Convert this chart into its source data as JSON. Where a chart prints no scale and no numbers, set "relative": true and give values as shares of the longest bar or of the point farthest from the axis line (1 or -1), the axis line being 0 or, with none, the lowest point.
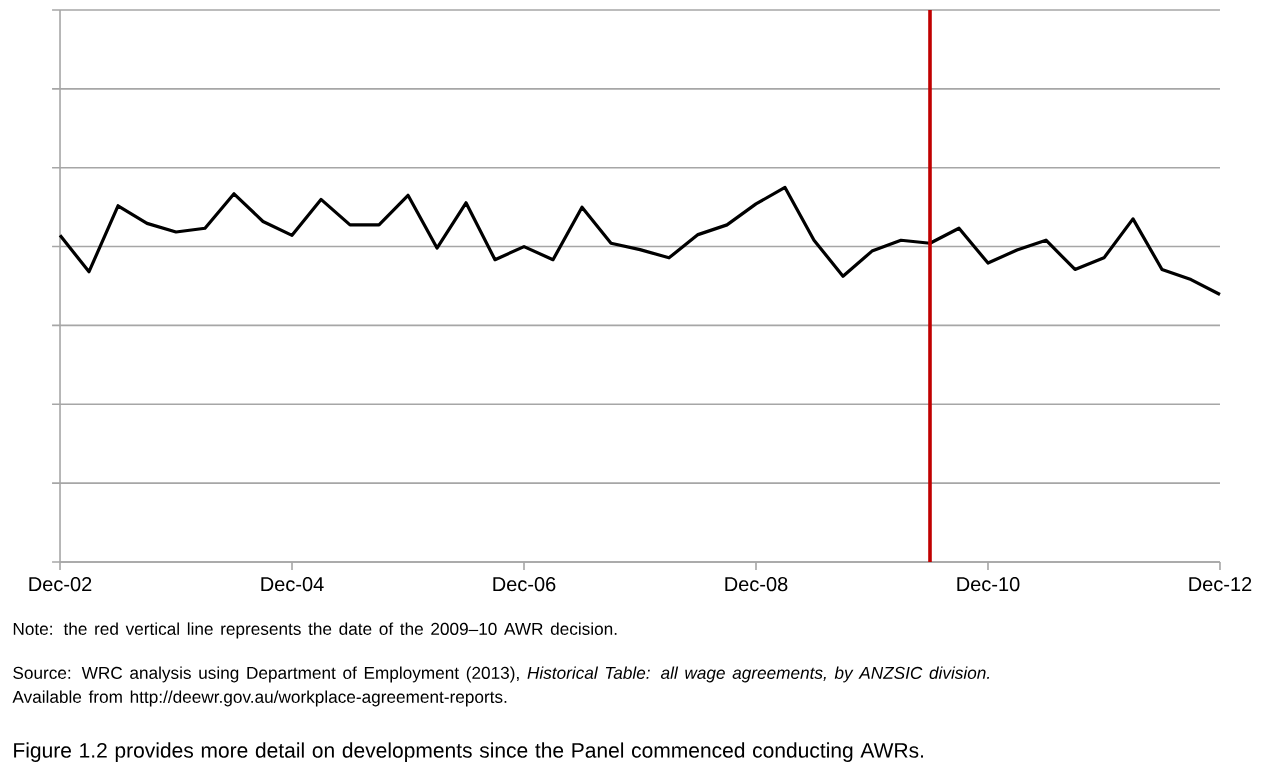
{
  "chart_data": {
    "type": "line",
    "relative": true,
    "x": [
      "2002-12",
      "2003-03",
      "2003-06",
      "2003-09",
      "2003-12",
      "2004-03",
      "2004-06",
      "2004-09",
      "2004-12",
      "2005-03",
      "2005-06",
      "2005-09",
      "2005-12",
      "2006-03",
      "2006-06",
      "2006-09",
      "2006-12",
      "2007-03",
      "2007-06",
      "2007-09",
      "2007-12",
      "2008-03",
      "2008-06",
      "2008-09",
      "2008-12",
      "2009-03",
      "2009-06",
      "2009-09",
      "2009-12",
      "2010-03",
      "2010-06",
      "2010-09",
      "2010-12",
      "2011-03",
      "2011-06",
      "2011-09",
      "2011-12",
      "2012-03",
      "2012-06",
      "2012-09",
      "2012-12"
    ],
    "values": [
      0.872,
      0.775,
      0.951,
      0.904,
      0.881,
      0.891,
      0.983,
      0.909,
      0.872,
      0.968,
      0.9,
      0.9,
      0.979,
      0.838,
      0.959,
      0.807,
      0.842,
      0.807,
      0.947,
      0.851,
      0.834,
      0.812,
      0.874,
      0.9,
      0.956,
      1,
      0.859,
      0.763,
      0.83,
      0.859,
      0.851,
      0.891,
      0.798,
      0.833,
      0.859,
      0.781,
      0.812,
      0.916,
      0.781,
      0.754,
      0.714
    ],
    "color": "#000000",
    "line_style": "solid",
    "marker": "none",
    "grid": "y",
    "xlim": [
      "2002-12",
      "2012-12"
    ],
    "xticks": [
      {
        "value": "2002-12",
        "label": "Dec-02"
      },
      {
        "value": "2004-12",
        "label": "Dec-04"
      },
      {
        "value": "2006-12",
        "label": "Dec-06"
      },
      {
        "value": "2008-12",
        "label": "Dec-08"
      },
      {
        "value": "2010-12",
        "label": "Dec-10"
      },
      {
        "value": "2012-12",
        "label": "Dec-12"
      }
    ],
    "ref_lines": [
      {
        "axis": "x",
        "value": "2010-06",
        "color": "#c00000",
        "line_style": "solid"
      }
    ],
    "annotations": [
      "Note: the red vertical line represents the date of the 2009–10 AWR decision.",
      "Source: WRC analysis using Department of Employment (2013), *Historical Table: all wage agreements, by ANZSIC division.*",
      "Available from http://deewr.gov.au/workplace-agreement-reports.",
      "Figure 1.2 provides more detail on developments since the Panel commenced conducting AWRs."
    ]
  }
}
